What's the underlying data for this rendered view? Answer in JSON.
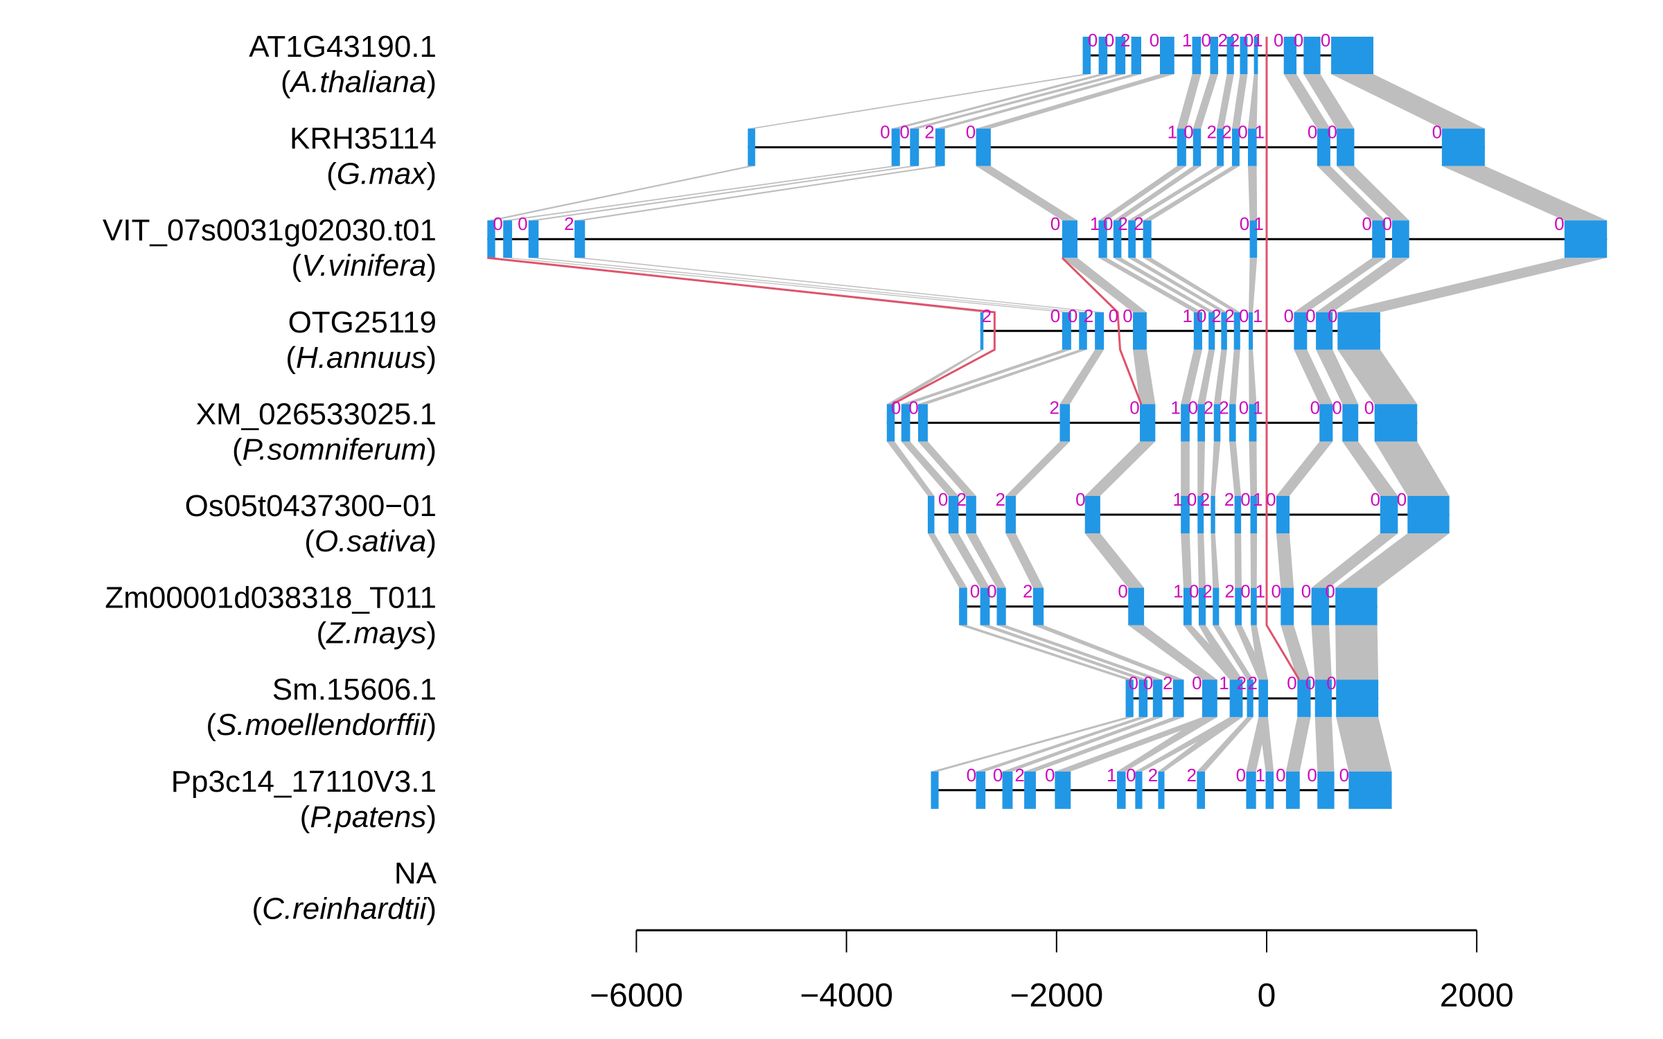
{
  "colors": {
    "exon": "#2297E6",
    "intron": "#000000",
    "link": "#BEBEBE",
    "highlight": "#DF536B",
    "phase": "#CD0BBC"
  },
  "genes": [
    {
      "name": "AT1G43190.1",
      "species": "A.thaliana",
      "exons": [
        [
          -1751,
          -1675
        ],
        [
          -1599,
          -1516
        ],
        [
          -1440,
          -1345
        ],
        [
          -1289,
          -1194
        ],
        [
          -1016,
          -879
        ],
        [
          -709,
          -625
        ],
        [
          -538,
          -462
        ],
        [
          -379,
          -311
        ],
        [
          -254,
          -182
        ],
        [
          -121,
          -83
        ],
        [
          163,
          284
        ],
        [
          352,
          512
        ],
        [
          614,
          1016
        ]
      ],
      "phases": [
        [
          -1656,
          "0"
        ],
        [
          -1497,
          "0"
        ],
        [
          -1345,
          "2"
        ],
        [
          -1069,
          "0"
        ],
        [
          -758,
          "1"
        ],
        [
          -576,
          "0"
        ],
        [
          -417,
          "2"
        ],
        [
          -303,
          "2"
        ],
        [
          -171,
          "0"
        ],
        [
          -83,
          "1"
        ],
        [
          114,
          "0"
        ],
        [
          303,
          "0"
        ],
        [
          561,
          "0"
        ]
      ]
    },
    {
      "name": "KRH35114",
      "species": "G.max",
      "exons": [
        [
          -4939,
          -4869
        ],
        [
          -3571,
          -3491
        ],
        [
          -3395,
          -3310
        ],
        [
          -3154,
          -3063
        ],
        [
          -2767,
          -2626
        ],
        [
          -853,
          -766
        ],
        [
          -701,
          -625
        ],
        [
          -474,
          -409
        ],
        [
          -330,
          -258
        ],
        [
          -178,
          -95
        ],
        [
          481,
          606
        ],
        [
          667,
          834
        ],
        [
          1668,
          2077
        ]
      ],
      "phases": [
        [
          -3632,
          "0"
        ],
        [
          -3446,
          "0"
        ],
        [
          -3209,
          "2"
        ],
        [
          -2817,
          "0"
        ],
        [
          -898,
          "1"
        ],
        [
          -743,
          "0"
        ],
        [
          -523,
          "2"
        ],
        [
          -379,
          "2"
        ],
        [
          -227,
          "0"
        ],
        [
          -68,
          "1"
        ],
        [
          436,
          "0"
        ],
        [
          625,
          "0"
        ],
        [
          1622,
          "0"
        ]
      ]
    },
    {
      "name": "VIT_07s0031g02030.t01",
      "species": "V.vinifera",
      "exons": [
        [
          -7419,
          -7344
        ],
        [
          -7268,
          -7183
        ],
        [
          -7027,
          -6931
        ],
        [
          -6589,
          -6489
        ],
        [
          -1947,
          -1801
        ],
        [
          -1600,
          -1519
        ],
        [
          -1459,
          -1383
        ],
        [
          -1318,
          -1247
        ],
        [
          -1177,
          -1097
        ],
        [
          -161,
          -91
        ],
        [
          1004,
          1129
        ],
        [
          1194,
          1357
        ],
        [
          2835,
          3240
        ]
      ],
      "phases": [
        [
          -7318,
          "0"
        ],
        [
          -7082,
          "0"
        ],
        [
          -6640,
          "2"
        ],
        [
          -2012,
          "0"
        ],
        [
          -1635,
          "1"
        ],
        [
          -1509,
          "0"
        ],
        [
          -1368,
          "2"
        ],
        [
          -1217,
          "2"
        ],
        [
          -211,
          "0"
        ],
        [
          -75,
          "1"
        ],
        [
          955,
          "0"
        ],
        [
          1148,
          "0"
        ],
        [
          2786,
          "0"
        ]
      ]
    },
    {
      "name": "OTG25119",
      "species": "H.annuus",
      "exons": [
        [
          -2726,
          -2696
        ],
        [
          -1947,
          -1861
        ],
        [
          -1786,
          -1710
        ],
        [
          -1635,
          -1549
        ],
        [
          -1273,
          -1142
        ],
        [
          -694,
          -614
        ],
        [
          -553,
          -493
        ],
        [
          -433,
          -377
        ],
        [
          -312,
          -252
        ],
        [
          -171,
          -131
        ],
        [
          260,
          385
        ],
        [
          469,
          628
        ],
        [
          675,
          1081
        ]
      ],
      "phases": [
        [
          -2666,
          "2"
        ],
        [
          -2012,
          "0"
        ],
        [
          -1846,
          "0"
        ],
        [
          -1695,
          "2"
        ],
        [
          -1459,
          "0"
        ],
        [
          -1323,
          "0"
        ],
        [
          -754,
          "1"
        ],
        [
          -619,
          "0"
        ],
        [
          -478,
          "2"
        ],
        [
          -352,
          "2"
        ],
        [
          -216,
          "0"
        ],
        [
          -85,
          "1"
        ],
        [
          210,
          "0"
        ],
        [
          419,
          "0"
        ],
        [
          629,
          "0"
        ]
      ]
    },
    {
      "name": "XM_026533025.1",
      "species": "P.somniferum",
      "exons": [
        [
          -3616,
          -3541
        ],
        [
          -3478,
          -3394
        ],
        [
          -3318,
          -3226
        ],
        [
          -1969,
          -1873
        ],
        [
          -1207,
          -1060
        ],
        [
          -817,
          -733
        ],
        [
          -658,
          -587
        ],
        [
          -503,
          -440
        ],
        [
          -356,
          -293
        ],
        [
          -168,
          -96
        ],
        [
          503,
          629
        ],
        [
          721,
          872
        ],
        [
          1027,
          1433
        ]
      ],
      "phases": [
        [
          -3528,
          "0"
        ],
        [
          -3360,
          "0"
        ],
        [
          -2020,
          "2"
        ],
        [
          -1257,
          "0"
        ],
        [
          -867,
          "1"
        ],
        [
          -700,
          "0"
        ],
        [
          -553,
          "2"
        ],
        [
          -406,
          "2"
        ],
        [
          -218,
          "0"
        ],
        [
          -84,
          "1"
        ],
        [
          461,
          "0"
        ],
        [
          670,
          "0"
        ],
        [
          976,
          "0"
        ]
      ]
    },
    {
      "name": "Os05t0437300−01",
      "species": "O.sativa",
      "exons": [
        [
          -3226,
          -3163
        ],
        [
          -3029,
          -2933
        ],
        [
          -2862,
          -2765
        ],
        [
          -2485,
          -2388
        ],
        [
          -1730,
          -1584
        ],
        [
          -817,
          -733
        ],
        [
          -658,
          -599
        ],
        [
          -532,
          -490
        ],
        [
          -306,
          -243
        ],
        [
          -155,
          -92
        ],
        [
          92,
          218
        ],
        [
          1081,
          1249
        ],
        [
          1341,
          1739
        ]
      ],
      "phases": [
        [
          -3080,
          "0"
        ],
        [
          -2904,
          "2"
        ],
        [
          -2535,
          "2"
        ],
        [
          -1772,
          "0"
        ],
        [
          -846,
          "1"
        ],
        [
          -712,
          "0"
        ],
        [
          -587,
          "2"
        ],
        [
          -356,
          "2"
        ],
        [
          -201,
          "0"
        ],
        [
          -84,
          "1"
        ],
        [
          42,
          "0"
        ],
        [
          1035,
          "0"
        ],
        [
          1286,
          "0"
        ]
      ]
    },
    {
      "name": "Zm00001d038318_T011",
      "species": "Z.mays",
      "exons": [
        [
          -2928,
          -2851
        ],
        [
          -2727,
          -2636
        ],
        [
          -2569,
          -2482
        ],
        [
          -2224,
          -2123
        ],
        [
          -1318,
          -1167
        ],
        [
          -792,
          -714
        ],
        [
          -647,
          -580
        ],
        [
          -513,
          -453
        ],
        [
          -302,
          -238
        ],
        [
          -151,
          -94
        ],
        [
          134,
          258
        ],
        [
          426,
          594
        ],
        [
          654,
          1053
        ]
      ],
      "phases": [
        [
          -2777,
          "0"
        ],
        [
          -2616,
          "0"
        ],
        [
          -2274,
          "2"
        ],
        [
          -1368,
          "0"
        ],
        [
          -842,
          "1"
        ],
        [
          -691,
          "0"
        ],
        [
          -563,
          "2"
        ],
        [
          -352,
          "2"
        ],
        [
          -201,
          "0"
        ],
        [
          -60,
          "1"
        ],
        [
          91,
          "0"
        ],
        [
          376,
          "0"
        ],
        [
          604,
          "0"
        ]
      ]
    },
    {
      "name": "Sm.15606.1",
      "species": "S.moellendorffii",
      "exons": [
        [
          -1342,
          -1268
        ],
        [
          -1217,
          -1134
        ],
        [
          -1083,
          -993
        ],
        [
          -892,
          -788
        ],
        [
          -614,
          -470
        ],
        [
          -352,
          -228
        ],
        [
          -188,
          -127
        ],
        [
          -77,
          13
        ],
        [
          292,
          419
        ],
        [
          460,
          620
        ],
        [
          661,
          1063
        ]
      ],
      "phases": [
        [
          -1268,
          "0"
        ],
        [
          -1127,
          "0"
        ],
        [
          -942,
          "2"
        ],
        [
          -664,
          "0"
        ],
        [
          -406,
          "1"
        ],
        [
          -238,
          "2"
        ],
        [
          -134,
          "2"
        ],
        [
          241,
          "0"
        ],
        [
          416,
          "0"
        ],
        [
          617,
          "0"
        ]
      ]
    },
    {
      "name": "Pp3c14_17110V3.1",
      "species": "P.patens",
      "exons": [
        [
          -3196,
          -3123
        ],
        [
          -2767,
          -2677
        ],
        [
          -2516,
          -2418
        ],
        [
          -2308,
          -2197
        ],
        [
          -2016,
          -1865
        ],
        [
          -1425,
          -1342
        ],
        [
          -1251,
          -1184
        ],
        [
          -1033,
          -973
        ],
        [
          -664,
          -587
        ],
        [
          -195,
          -101
        ],
        [
          -10,
          67
        ],
        [
          184,
          315
        ],
        [
          483,
          644
        ],
        [
          781,
          1191
        ]
      ],
      "phases": [
        [
          -2811,
          "0"
        ],
        [
          -2559,
          "0"
        ],
        [
          -2351,
          "2"
        ],
        [
          -2063,
          "0"
        ],
        [
          -1476,
          "1"
        ],
        [
          -1291,
          "0"
        ],
        [
          -1083,
          "2"
        ],
        [
          -714,
          "2"
        ],
        [
          -245,
          "0"
        ],
        [
          -60,
          "1"
        ],
        [
          134,
          "0"
        ],
        [
          433,
          "0"
        ],
        [
          738,
          "0"
        ]
      ]
    },
    {
      "name": "NA",
      "species": "C.reinhardtii",
      "exons": [],
      "phases": []
    }
  ],
  "links": [
    [
      [
        0,
        0
      ],
      [
        1,
        1
      ],
      [
        2,
        2
      ],
      [
        3,
        3
      ],
      [
        4,
        4
      ],
      [
        5,
        5
      ],
      [
        6,
        6
      ],
      [
        7,
        7
      ],
      [
        8,
        8
      ],
      [
        9,
        9
      ],
      [
        10,
        10
      ],
      [
        11,
        11
      ],
      [
        12,
        12
      ]
    ],
    [
      [
        0,
        0
      ],
      [
        1,
        1
      ],
      [
        2,
        2
      ],
      [
        3,
        3
      ],
      [
        4,
        4
      ],
      [
        5,
        5
      ],
      [
        6,
        6
      ],
      [
        7,
        7
      ],
      [
        8,
        8
      ],
      [
        9,
        9
      ],
      [
        10,
        10
      ],
      [
        11,
        11
      ],
      [
        12,
        12
      ]
    ],
    [
      [
        0,
        0
      ],
      [
        1,
        1
      ],
      [
        2,
        2
      ],
      [
        3,
        3
      ],
      [
        4,
        4
      ],
      [
        5,
        5
      ],
      [
        6,
        6
      ],
      [
        7,
        7
      ],
      [
        8,
        8
      ],
      [
        9,
        9
      ],
      [
        10,
        10
      ],
      [
        11,
        11
      ],
      [
        12,
        12
      ]
    ],
    [
      [
        0,
        0
      ],
      [
        1,
        1
      ],
      [
        2,
        2
      ],
      [
        3,
        3
      ],
      [
        4,
        4
      ],
      [
        5,
        5
      ],
      [
        6,
        6
      ],
      [
        7,
        7
      ],
      [
        8,
        8
      ],
      [
        9,
        9
      ],
      [
        10,
        10
      ],
      [
        11,
        11
      ],
      [
        12,
        12
      ]
    ],
    [
      [
        0,
        0
      ],
      [
        1,
        1
      ],
      [
        2,
        2
      ],
      [
        3,
        3
      ],
      [
        4,
        4
      ],
      [
        5,
        5
      ],
      [
        6,
        6
      ],
      [
        7,
        7
      ],
      [
        8,
        8
      ],
      [
        9,
        9
      ],
      [
        10,
        10
      ],
      [
        11,
        11
      ],
      [
        12,
        12
      ]
    ],
    [
      [
        0,
        0
      ],
      [
        1,
        1
      ],
      [
        2,
        2
      ],
      [
        3,
        3
      ],
      [
        4,
        4
      ],
      [
        5,
        5
      ],
      [
        6,
        6
      ],
      [
        7,
        7
      ],
      [
        8,
        8
      ],
      [
        9,
        9
      ],
      [
        10,
        10
      ],
      [
        11,
        11
      ],
      [
        12,
        12
      ]
    ],
    [
      [
        0,
        0
      ],
      [
        1,
        1
      ],
      [
        2,
        2
      ],
      [
        3,
        3
      ],
      [
        4,
        4
      ],
      [
        5,
        5
      ],
      [
        6,
        5
      ],
      [
        7,
        6
      ],
      [
        8,
        7
      ],
      [
        9,
        7
      ],
      [
        10,
        8
      ],
      [
        11,
        9
      ],
      [
        12,
        10
      ]
    ],
    [
      [
        0,
        0
      ],
      [
        1,
        1
      ],
      [
        2,
        2
      ],
      [
        3,
        3
      ],
      [
        4,
        4
      ],
      [
        4,
        5
      ],
      [
        5,
        6
      ],
      [
        5,
        7
      ],
      [
        6,
        8
      ],
      [
        7,
        9
      ],
      [
        7,
        10
      ],
      [
        8,
        11
      ],
      [
        9,
        12
      ],
      [
        10,
        13
      ]
    ]
  ],
  "highlight_paths": [
    [
      [
        0,
        "top",
        0
      ],
      [
        6,
        "bottom",
        0
      ],
      [
        7,
        "top",
        309
      ]
    ],
    [
      [
        2,
        "bottom",
        -7419
      ],
      [
        3,
        "top",
        -2590
      ],
      [
        3,
        "bottom",
        -2590
      ],
      [
        4,
        "top",
        -3560
      ]
    ],
    [
      [
        2,
        "bottom",
        -1947
      ],
      [
        3,
        "top",
        -1418
      ],
      [
        3,
        "bottom",
        -1395
      ],
      [
        4,
        "top",
        -1194
      ]
    ]
  ],
  "axis": {
    "range": [
      -6000,
      2000
    ],
    "ticks": [
      -6000,
      -4000,
      -2000,
      0,
      2000
    ],
    "tick_labels": [
      "−6000",
      "−4000",
      "−2000",
      "0",
      "2000"
    ]
  }
}
